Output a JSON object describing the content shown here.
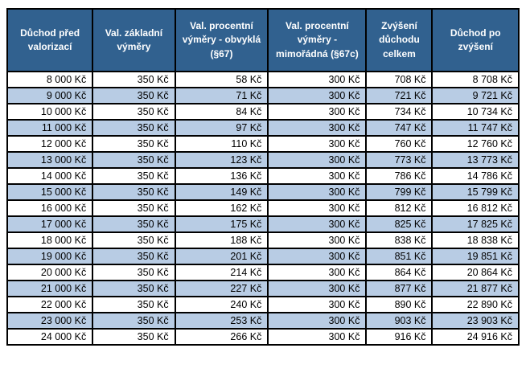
{
  "colors": {
    "header_bg": "#31618F",
    "header_text": "#FFFFFF",
    "row_bg": "#FFFFFF",
    "row_alt_bg": "#B8CCE4",
    "border": "#000000",
    "cell_text": "#000000"
  },
  "table": {
    "headers": [
      "Důchod před valorizací",
      "Val. základní výměry",
      "Val. procentní výměry - obvyklá (§67)",
      "Val. procentní výměry - mimořádná (§67c)",
      "Zvýšení důchodu celkem",
      "Důchod po zvýšení"
    ],
    "rows": [
      [
        "8 000 Kč",
        "350 Kč",
        "58 Kč",
        "300 Kč",
        "708 Kč",
        "8 708 Kč"
      ],
      [
        "9 000 Kč",
        "350 Kč",
        "71 Kč",
        "300 Kč",
        "721 Kč",
        "9 721 Kč"
      ],
      [
        "10 000 Kč",
        "350 Kč",
        "84 Kč",
        "300 Kč",
        "734 Kč",
        "10 734 Kč"
      ],
      [
        "11 000 Kč",
        "350 Kč",
        "97 Kč",
        "300 Kč",
        "747 Kč",
        "11 747 Kč"
      ],
      [
        "12 000 Kč",
        "350 Kč",
        "110 Kč",
        "300 Kč",
        "760 Kč",
        "12 760 Kč"
      ],
      [
        "13 000 Kč",
        "350 Kč",
        "123 Kč",
        "300 Kč",
        "773 Kč",
        "13 773 Kč"
      ],
      [
        "14 000 Kč",
        "350 Kč",
        "136 Kč",
        "300 Kč",
        "786 Kč",
        "14 786 Kč"
      ],
      [
        "15 000 Kč",
        "350 Kč",
        "149 Kč",
        "300 Kč",
        "799 Kč",
        "15 799 Kč"
      ],
      [
        "16 000 Kč",
        "350 Kč",
        "162 Kč",
        "300 Kč",
        "812 Kč",
        "16 812 Kč"
      ],
      [
        "17 000 Kč",
        "350 Kč",
        "175 Kč",
        "300 Kč",
        "825 Kč",
        "17 825 Kč"
      ],
      [
        "18 000 Kč",
        "350 Kč",
        "188 Kč",
        "300 Kč",
        "838 Kč",
        "18 838 Kč"
      ],
      [
        "19 000 Kč",
        "350 Kč",
        "201 Kč",
        "300 Kč",
        "851 Kč",
        "19 851 Kč"
      ],
      [
        "20 000 Kč",
        "350 Kč",
        "214 Kč",
        "300 Kč",
        "864 Kč",
        "20 864 Kč"
      ],
      [
        "21 000 Kč",
        "350 Kč",
        "227 Kč",
        "300 Kč",
        "877 Kč",
        "21 877 Kč"
      ],
      [
        "22 000 Kč",
        "350 Kč",
        "240 Kč",
        "300 Kč",
        "890 Kč",
        "22 890 Kč"
      ],
      [
        "23 000 Kč",
        "350 Kč",
        "253 Kč",
        "300 Kč",
        "903 Kč",
        "23 903 Kč"
      ],
      [
        "24 000 Kč",
        "350 Kč",
        "266 Kč",
        "300 Kč",
        "916 Kč",
        "24 916 Kč"
      ]
    ]
  }
}
